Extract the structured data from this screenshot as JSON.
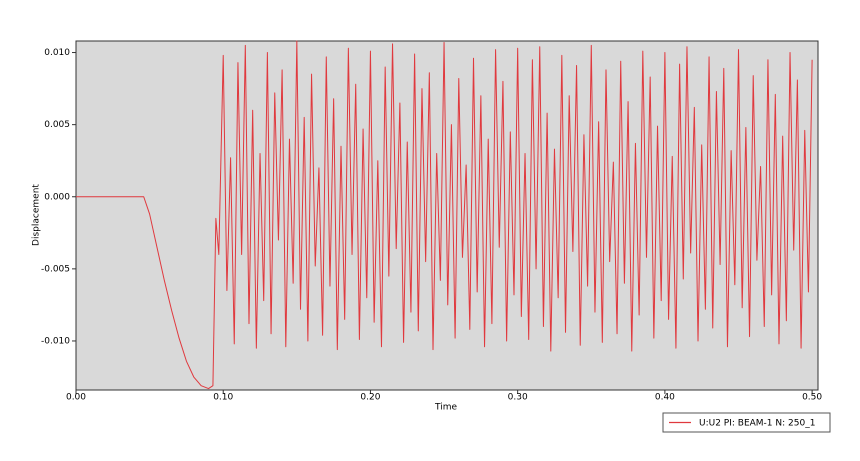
{
  "chart_data": {
    "type": "line",
    "xlabel": "Time",
    "ylabel": "Displacement",
    "xlim": [
      0,
      0.504
    ],
    "ylim": [
      -0.0134,
      0.0108
    ],
    "xticks": [
      {
        "value": 0,
        "label": "0.00"
      },
      {
        "value": 0.1,
        "label": "0.10"
      },
      {
        "value": 0.2,
        "label": "0.20"
      },
      {
        "value": 0.3,
        "label": "0.30"
      },
      {
        "value": 0.4,
        "label": "0.40"
      },
      {
        "value": 0.5,
        "label": "0.50"
      }
    ],
    "yticks": [
      {
        "value": -0.01,
        "label": "-0.010"
      },
      {
        "value": -0.005,
        "label": "-0.005"
      },
      {
        "value": 0,
        "label": "0.000"
      },
      {
        "value": 0.005,
        "label": "0.005"
      },
      {
        "value": 0.01,
        "label": "0.010"
      }
    ],
    "grid": false,
    "legend": "bottom-right",
    "x": [
      0,
      0.046,
      0.05,
      0.055,
      0.06,
      0.065,
      0.07,
      0.075,
      0.08,
      0.085,
      0.09,
      0.093,
      0.095,
      0.097,
      0.1,
      0.1025,
      0.105,
      0.1075,
      0.11,
      0.1125,
      0.115,
      0.1175,
      0.12,
      0.1225,
      0.125,
      0.1275,
      0.13,
      0.1325,
      0.135,
      0.1375,
      0.14,
      0.1425,
      0.145,
      0.1475,
      0.15,
      0.1525,
      0.155,
      0.1575,
      0.16,
      0.1625,
      0.165,
      0.1675,
      0.17,
      0.1725,
      0.175,
      0.1775,
      0.18,
      0.1825,
      0.185,
      0.1875,
      0.19,
      0.1925,
      0.195,
      0.1975,
      0.2,
      0.2025,
      0.205,
      0.2075,
      0.21,
      0.2125,
      0.215,
      0.2175,
      0.22,
      0.2225,
      0.225,
      0.2275,
      0.23,
      0.2325,
      0.235,
      0.2375,
      0.24,
      0.2425,
      0.245,
      0.2475,
      0.25,
      0.2525,
      0.255,
      0.2575,
      0.26,
      0.2625,
      0.265,
      0.2675,
      0.27,
      0.2725,
      0.275,
      0.2775,
      0.28,
      0.2825,
      0.285,
      0.2875,
      0.29,
      0.2925,
      0.295,
      0.2975,
      0.3,
      0.3025,
      0.305,
      0.3075,
      0.31,
      0.3125,
      0.315,
      0.3175,
      0.32,
      0.3225,
      0.325,
      0.3275,
      0.33,
      0.3325,
      0.335,
      0.3375,
      0.34,
      0.3425,
      0.345,
      0.3475,
      0.35,
      0.3525,
      0.355,
      0.3575,
      0.36,
      0.3625,
      0.365,
      0.3675,
      0.37,
      0.3725,
      0.375,
      0.3775,
      0.38,
      0.3825,
      0.385,
      0.3875,
      0.39,
      0.3925,
      0.395,
      0.3975,
      0.4,
      0.4025,
      0.405,
      0.4075,
      0.41,
      0.4125,
      0.415,
      0.4175,
      0.42,
      0.4225,
      0.425,
      0.4275,
      0.43,
      0.4325,
      0.435,
      0.4375,
      0.44,
      0.4425,
      0.445,
      0.4475,
      0.45,
      0.4525,
      0.455,
      0.4575,
      0.46,
      0.4625,
      0.465,
      0.4675,
      0.47,
      0.4725,
      0.475,
      0.4775,
      0.48,
      0.4825,
      0.485,
      0.4875,
      0.49,
      0.4925,
      0.495,
      0.4975,
      0.5
    ],
    "series": [
      {
        "name": "U:U2 PI: BEAM-1 N: 250_1",
        "color": "#e0393e",
        "values": [
          0,
          0,
          -0.0012,
          -0.0035,
          -0.0058,
          -0.0079,
          -0.0098,
          -0.0114,
          -0.0125,
          -0.0131,
          -0.0133,
          -0.0131,
          -0.0015,
          -0.004,
          0.0098,
          -0.0065,
          0.0027,
          -0.0102,
          0.0093,
          -0.004,
          0.0105,
          -0.0088,
          0.006,
          -0.0105,
          0.003,
          -0.0072,
          0.01,
          -0.0095,
          0.0072,
          -0.003,
          0.0088,
          -0.0104,
          0.004,
          -0.006,
          0.0108,
          -0.0078,
          0.0055,
          -0.01,
          0.0085,
          -0.0048,
          0.002,
          -0.0096,
          0.0097,
          -0.0062,
          0.0068,
          -0.0106,
          0.0035,
          -0.0085,
          0.0103,
          -0.004,
          0.0078,
          -0.0099,
          0.0047,
          -0.007,
          0.0101,
          -0.0087,
          0.0025,
          -0.0104,
          0.009,
          -0.0055,
          0.0106,
          -0.0036,
          0.0065,
          -0.0101,
          0.0038,
          -0.008,
          0.0099,
          -0.0093,
          0.0075,
          -0.0045,
          0.0086,
          -0.0106,
          0.003,
          -0.0058,
          0.0107,
          -0.0075,
          0.005,
          -0.0098,
          0.0082,
          -0.0042,
          0.0022,
          -0.0092,
          0.0096,
          -0.0066,
          0.007,
          -0.0104,
          0.004,
          -0.0088,
          0.0102,
          -0.0035,
          0.008,
          -0.01,
          0.0045,
          -0.0068,
          0.0103,
          -0.0083,
          0.003,
          -0.0099,
          0.0095,
          -0.005,
          0.0104,
          -0.009,
          0.0058,
          -0.0107,
          0.0033,
          -0.007,
          0.0098,
          -0.0094,
          0.007,
          -0.0038,
          0.0091,
          -0.0103,
          0.0043,
          -0.0062,
          0.0105,
          -0.008,
          0.0052,
          -0.0101,
          0.0088,
          -0.0045,
          0.0024,
          -0.0095,
          0.0094,
          -0.006,
          0.0066,
          -0.0107,
          0.0037,
          -0.0082,
          0.0101,
          -0.0042,
          0.0083,
          -0.0098,
          0.0049,
          -0.0072,
          0.01,
          -0.0085,
          0.0028,
          -0.0105,
          0.0092,
          -0.0057,
          0.0104,
          -0.0039,
          0.0062,
          -0.01,
          0.0036,
          -0.0078,
          0.0097,
          -0.0091,
          0.0073,
          -0.0047,
          0.0089,
          -0.0104,
          0.0032,
          -0.0061,
          0.0102,
          -0.0077,
          0.0048,
          -0.0097,
          0.0084,
          -0.0044,
          0.0021,
          -0.009,
          0.0095,
          -0.0068,
          0.0071,
          -0.0102,
          0.0042,
          -0.0086,
          0.01,
          -0.0037,
          0.0081,
          -0.0105,
          0.0046,
          -0.0066,
          0.0095
        ]
      }
    ]
  }
}
